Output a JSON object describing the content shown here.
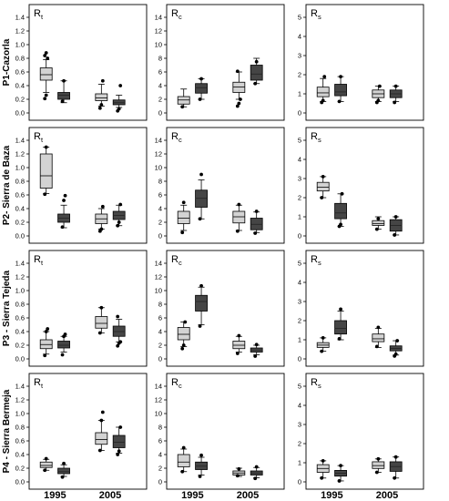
{
  "colors": {
    "light": "#d3d3d3",
    "dark": "#454545",
    "stroke": "#000000"
  },
  "columns": [
    {
      "name": "R",
      "sub": "t",
      "ylim": [
        0,
        1.4
      ],
      "ticks": [
        0.0,
        0.2,
        0.4,
        0.6,
        0.8,
        1.0,
        1.2,
        1.4
      ],
      "decimals": 1
    },
    {
      "name": "R",
      "sub": "c",
      "ylim": [
        0,
        14
      ],
      "ticks": [
        0,
        2,
        4,
        6,
        8,
        10,
        12,
        14
      ],
      "decimals": 0
    },
    {
      "name": "R",
      "sub": "s",
      "ylim": [
        0,
        5
      ],
      "ticks": [
        0,
        1,
        2,
        3,
        4,
        5
      ],
      "decimals": 0
    }
  ],
  "rows": [
    {
      "label": "P1-Cazorla"
    },
    {
      "label": "P2- Sierra de Baza"
    },
    {
      "label": "P3 - Sierra Tejeda"
    },
    {
      "label": "P4 - Sierra Bermeja"
    }
  ],
  "x_labels": [
    "1995",
    "2005"
  ],
  "chart_data": {
    "type": "boxplot",
    "layout": "4 rows (sites) x 3 columns (indices)",
    "x_categories": [
      "1995",
      "2005"
    ],
    "box_series": [
      "light",
      "dark"
    ],
    "panels": [
      {
        "row": 0,
        "col": 0,
        "boxes": [
          {
            "year": "1995",
            "series": "light",
            "q1": 0.48,
            "median": 0.56,
            "q3": 0.66,
            "whisker_low": 0.3,
            "whisker_high": 0.78,
            "outliers": [
              0.21,
              0.26,
              0.8,
              0.84,
              0.88
            ]
          },
          {
            "year": "1995",
            "series": "dark",
            "q1": 0.2,
            "median": 0.26,
            "q3": 0.3,
            "whisker_low": 0.15,
            "whisker_high": 0.47,
            "outliers": [
              0.17,
              0.47
            ]
          },
          {
            "year": "2005",
            "series": "light",
            "q1": 0.18,
            "median": 0.22,
            "q3": 0.28,
            "whisker_low": 0.1,
            "whisker_high": 0.42,
            "outliers": [
              0.07,
              0.12,
              0.47
            ]
          },
          {
            "year": "2005",
            "series": "dark",
            "q1": 0.12,
            "median": 0.15,
            "q3": 0.19,
            "whisker_low": 0.08,
            "whisker_high": 0.26,
            "outliers": [
              0.03,
              0.06,
              0.4
            ]
          }
        ]
      },
      {
        "row": 0,
        "col": 1,
        "boxes": [
          {
            "year": "1995",
            "series": "light",
            "q1": 1.3,
            "median": 1.9,
            "q3": 2.4,
            "whisker_low": 0.9,
            "whisker_high": 3.5,
            "outliers": [
              0.9
            ]
          },
          {
            "year": "1995",
            "series": "dark",
            "q1": 2.9,
            "median": 3.7,
            "q3": 4.3,
            "whisker_low": 2.0,
            "whisker_high": 5.0,
            "outliers": [
              2.0,
              5.0
            ]
          },
          {
            "year": "2005",
            "series": "light",
            "q1": 3.0,
            "median": 3.8,
            "q3": 4.5,
            "whisker_low": 2.0,
            "whisker_high": 6.0,
            "outliers": [
              1.0,
              1.4,
              2.0,
              6.1
            ]
          },
          {
            "year": "2005",
            "series": "dark",
            "q1": 4.8,
            "median": 5.7,
            "q3": 7.0,
            "whisker_low": 4.3,
            "whisker_high": 8.0,
            "outliers": [
              4.3,
              7.5
            ]
          }
        ]
      },
      {
        "row": 0,
        "col": 2,
        "boxes": [
          {
            "year": "1995",
            "series": "light",
            "q1": 0.85,
            "median": 1.05,
            "q3": 1.35,
            "whisker_low": 0.6,
            "whisker_high": 1.8,
            "outliers": [
              0.55,
              0.65,
              1.9
            ]
          },
          {
            "year": "1995",
            "series": "dark",
            "q1": 0.9,
            "median": 1.1,
            "q3": 1.5,
            "whisker_low": 0.6,
            "whisker_high": 1.9,
            "outliers": [
              0.6,
              1.9
            ]
          },
          {
            "year": "2005",
            "series": "light",
            "q1": 0.8,
            "median": 1.0,
            "q3": 1.2,
            "whisker_low": 0.6,
            "whisker_high": 1.4,
            "outliers": [
              0.55,
              0.65,
              1.4
            ]
          },
          {
            "year": "2005",
            "series": "dark",
            "q1": 0.8,
            "median": 1.0,
            "q3": 1.2,
            "whisker_low": 0.6,
            "whisker_high": 1.4,
            "outliers": [
              0.55,
              1.4
            ]
          }
        ]
      },
      {
        "row": 1,
        "col": 0,
        "boxes": [
          {
            "year": "1995",
            "series": "light",
            "q1": 0.7,
            "median": 0.88,
            "q3": 1.2,
            "whisker_low": 0.62,
            "whisker_high": 1.3,
            "outliers": [
              0.61,
              1.3
            ]
          },
          {
            "year": "1995",
            "series": "dark",
            "q1": 0.2,
            "median": 0.26,
            "q3": 0.32,
            "whisker_low": 0.12,
            "whisker_high": 0.45,
            "outliers": [
              0.13,
              0.52,
              0.59
            ]
          },
          {
            "year": "2005",
            "series": "light",
            "q1": 0.18,
            "median": 0.25,
            "q3": 0.32,
            "whisker_low": 0.1,
            "whisker_high": 0.4,
            "outliers": [
              0.07,
              0.1,
              0.43
            ]
          },
          {
            "year": "2005",
            "series": "dark",
            "q1": 0.24,
            "median": 0.3,
            "q3": 0.36,
            "whisker_low": 0.15,
            "whisker_high": 0.45,
            "outliers": [
              0.15,
              0.2,
              0.46
            ]
          }
        ]
      },
      {
        "row": 1,
        "col": 1,
        "boxes": [
          {
            "year": "1995",
            "series": "light",
            "q1": 1.8,
            "median": 2.6,
            "q3": 3.6,
            "whisker_low": 0.8,
            "whisker_high": 4.5,
            "outliers": [
              0.5,
              4.9
            ]
          },
          {
            "year": "1995",
            "series": "dark",
            "q1": 4.2,
            "median": 5.5,
            "q3": 6.7,
            "whisker_low": 2.5,
            "whisker_high": 8.2,
            "outliers": [
              2.5,
              9.0
            ]
          },
          {
            "year": "2005",
            "series": "light",
            "q1": 1.9,
            "median": 2.8,
            "q3": 3.6,
            "whisker_low": 0.8,
            "whisker_high": 4.5,
            "outliers": [
              0.7,
              4.6
            ]
          },
          {
            "year": "2005",
            "series": "dark",
            "q1": 0.9,
            "median": 1.7,
            "q3": 2.6,
            "whisker_low": 0.5,
            "whisker_high": 3.5,
            "outliers": [
              0.4,
              3.6
            ]
          }
        ]
      },
      {
        "row": 1,
        "col": 2,
        "boxes": [
          {
            "year": "1995",
            "series": "light",
            "q1": 2.35,
            "median": 2.55,
            "q3": 2.8,
            "whisker_low": 2.0,
            "whisker_high": 3.1,
            "outliers": [
              2.0,
              3.1
            ]
          },
          {
            "year": "1995",
            "series": "dark",
            "q1": 0.9,
            "median": 1.2,
            "q3": 1.7,
            "whisker_low": 0.5,
            "whisker_high": 2.2,
            "outliers": [
              0.5,
              0.6,
              2.2
            ]
          },
          {
            "year": "2005",
            "series": "light",
            "q1": 0.55,
            "median": 0.65,
            "q3": 0.8,
            "whisker_low": 0.35,
            "whisker_high": 1.0,
            "outliers": [
              0.35,
              0.9
            ]
          },
          {
            "year": "2005",
            "series": "dark",
            "q1": 0.25,
            "median": 0.55,
            "q3": 0.85,
            "whisker_low": 0.05,
            "whisker_high": 1.0,
            "outliers": [
              0.05,
              1.0
            ]
          }
        ]
      },
      {
        "row": 2,
        "col": 0,
        "boxes": [
          {
            "year": "1995",
            "series": "light",
            "q1": 0.15,
            "median": 0.21,
            "q3": 0.28,
            "whisker_low": 0.07,
            "whisker_high": 0.4,
            "outliers": [
              0.05,
              0.4,
              0.44
            ]
          },
          {
            "year": "1995",
            "series": "dark",
            "q1": 0.16,
            "median": 0.2,
            "q3": 0.26,
            "whisker_low": 0.1,
            "whisker_high": 0.33,
            "outliers": [
              0.06,
              0.33,
              0.36
            ]
          },
          {
            "year": "2005",
            "series": "light",
            "q1": 0.45,
            "median": 0.52,
            "q3": 0.62,
            "whisker_low": 0.38,
            "whisker_high": 0.75,
            "outliers": [
              0.38,
              0.75
            ]
          },
          {
            "year": "2005",
            "series": "dark",
            "q1": 0.33,
            "median": 0.4,
            "q3": 0.48,
            "whisker_low": 0.25,
            "whisker_high": 0.58,
            "outliers": [
              0.19,
              0.23,
              0.25,
              0.62
            ]
          }
        ]
      },
      {
        "row": 2,
        "col": 1,
        "boxes": [
          {
            "year": "1995",
            "series": "light",
            "q1": 2.8,
            "median": 3.6,
            "q3": 4.6,
            "whisker_low": 1.8,
            "whisker_high": 5.4,
            "outliers": [
              1.5,
              2.0,
              5.4
            ]
          },
          {
            "year": "1995",
            "series": "dark",
            "q1": 7.0,
            "median": 8.4,
            "q3": 9.3,
            "whisker_low": 5.0,
            "whisker_high": 10.5,
            "outliers": [
              4.8,
              10.7
            ]
          },
          {
            "year": "2005",
            "series": "light",
            "q1": 1.5,
            "median": 2.0,
            "q3": 2.6,
            "whisker_low": 1.0,
            "whisker_high": 3.3,
            "outliers": [
              0.8,
              3.4
            ]
          },
          {
            "year": "2005",
            "series": "dark",
            "q1": 1.0,
            "median": 1.3,
            "q3": 1.6,
            "whisker_low": 0.6,
            "whisker_high": 2.0,
            "outliers": [
              0.4,
              2.1
            ]
          }
        ]
      },
      {
        "row": 2,
        "col": 2,
        "boxes": [
          {
            "year": "1995",
            "series": "light",
            "q1": 0.6,
            "median": 0.72,
            "q3": 0.85,
            "whisker_low": 0.4,
            "whisker_high": 1.1,
            "outliers": [
              0.4,
              1.1
            ]
          },
          {
            "year": "1995",
            "series": "dark",
            "q1": 1.3,
            "median": 1.6,
            "q3": 2.0,
            "whisker_low": 1.0,
            "whisker_high": 2.5,
            "outliers": [
              1.05,
              2.6
            ]
          },
          {
            "year": "2005",
            "series": "light",
            "q1": 0.9,
            "median": 1.05,
            "q3": 1.3,
            "whisker_low": 0.6,
            "whisker_high": 1.6,
            "outliers": [
              0.65,
              1.65
            ]
          },
          {
            "year": "2005",
            "series": "dark",
            "q1": 0.42,
            "median": 0.55,
            "q3": 0.68,
            "whisker_low": 0.2,
            "whisker_high": 0.95,
            "outliers": [
              0.15,
              0.25,
              0.95
            ]
          }
        ]
      },
      {
        "row": 3,
        "col": 0,
        "boxes": [
          {
            "year": "1995",
            "series": "light",
            "q1": 0.21,
            "median": 0.24,
            "q3": 0.29,
            "whisker_low": 0.17,
            "whisker_high": 0.33,
            "outliers": [
              0.17,
              0.34
            ]
          },
          {
            "year": "1995",
            "series": "dark",
            "q1": 0.12,
            "median": 0.15,
            "q3": 0.2,
            "whisker_low": 0.08,
            "whisker_high": 0.25,
            "outliers": [
              0.07,
              0.27
            ]
          },
          {
            "year": "2005",
            "series": "light",
            "q1": 0.55,
            "median": 0.62,
            "q3": 0.72,
            "whisker_low": 0.46,
            "whisker_high": 0.9,
            "outliers": [
              0.46,
              0.9,
              1.02
            ]
          },
          {
            "year": "2005",
            "series": "dark",
            "q1": 0.5,
            "median": 0.58,
            "q3": 0.68,
            "whisker_low": 0.42,
            "whisker_high": 0.8,
            "outliers": [
              0.4,
              0.45,
              0.8
            ]
          }
        ]
      },
      {
        "row": 3,
        "col": 1,
        "boxes": [
          {
            "year": "1995",
            "series": "light",
            "q1": 2.2,
            "median": 2.9,
            "q3": 4.0,
            "whisker_low": 1.5,
            "whisker_high": 4.8,
            "outliers": [
              1.5,
              5.0
            ]
          },
          {
            "year": "1995",
            "series": "dark",
            "q1": 1.8,
            "median": 2.3,
            "q3": 2.9,
            "whisker_low": 1.0,
            "whisker_high": 3.6,
            "outliers": [
              0.8,
              3.9
            ]
          },
          {
            "year": "2005",
            "series": "light",
            "q1": 1.0,
            "median": 1.3,
            "q3": 1.6,
            "whisker_low": 0.8,
            "whisker_high": 2.0,
            "outliers": [
              0.9,
              1.9
            ]
          },
          {
            "year": "2005",
            "series": "dark",
            "q1": 1.0,
            "median": 1.3,
            "q3": 1.6,
            "whisker_low": 0.6,
            "whisker_high": 2.1,
            "outliers": [
              0.5,
              2.2
            ]
          }
        ]
      },
      {
        "row": 3,
        "col": 2,
        "boxes": [
          {
            "year": "1995",
            "series": "light",
            "q1": 0.5,
            "median": 0.7,
            "q3": 0.9,
            "whisker_low": 0.2,
            "whisker_high": 1.1,
            "outliers": [
              0.2,
              1.1
            ]
          },
          {
            "year": "1995",
            "series": "dark",
            "q1": 0.3,
            "median": 0.45,
            "q3": 0.6,
            "whisker_low": 0.05,
            "whisker_high": 0.85,
            "outliers": [
              0.05,
              0.85
            ]
          },
          {
            "year": "2005",
            "series": "light",
            "q1": 0.7,
            "median": 0.85,
            "q3": 1.05,
            "whisker_low": 0.5,
            "whisker_high": 1.2,
            "outliers": [
              0.5,
              1.2
            ]
          },
          {
            "year": "2005",
            "series": "dark",
            "q1": 0.55,
            "median": 0.8,
            "q3": 1.05,
            "whisker_low": 0.2,
            "whisker_high": 1.3,
            "outliers": [
              0.2,
              1.3
            ]
          }
        ]
      }
    ]
  }
}
